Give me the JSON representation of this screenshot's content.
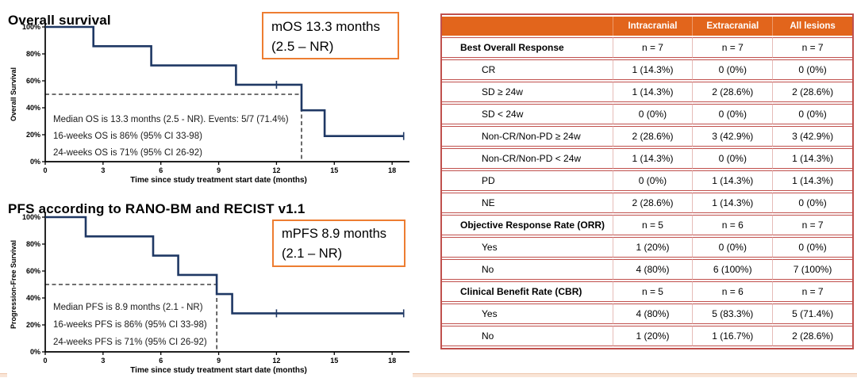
{
  "colors": {
    "km_line": "#1f3864",
    "callout_border": "#ed7d31",
    "table_header_bg": "#e2651c",
    "table_border": "#c0504d",
    "table_column_divider": "#e6bcb8",
    "footer_strip": "#f9e5d7",
    "axis": "#000000"
  },
  "chart_data": [
    {
      "type": "line",
      "subtype": "kaplan-meier-step",
      "title": "Overall survival",
      "ylabel": "Overall Survival",
      "xlabel": "Time since study treatment start date (months)",
      "xlim": [
        0,
        18.9
      ],
      "ylim": [
        0,
        100
      ],
      "xticks": [
        0,
        3,
        6,
        9,
        12,
        15,
        18
      ],
      "yticks": [
        0,
        20,
        40,
        60,
        80,
        100
      ],
      "ytick_suffix": "%",
      "grid": false,
      "legend": "none",
      "line_color": "#1f3864",
      "steps": [
        [
          0,
          100
        ],
        [
          2.5,
          100
        ],
        [
          2.5,
          85.7
        ],
        [
          5.5,
          85.7
        ],
        [
          5.5,
          71.4
        ],
        [
          9.9,
          71.4
        ],
        [
          9.9,
          57.1
        ],
        [
          13.3,
          57.1
        ],
        [
          13.3,
          38.1
        ],
        [
          14.5,
          38.1
        ],
        [
          14.5,
          19
        ],
        [
          18.6,
          19
        ]
      ],
      "censor_marks": [
        [
          12,
          57.1
        ],
        [
          18.6,
          19
        ]
      ],
      "median_dashed": {
        "x": 13.3,
        "y": 50
      },
      "annotations": [
        "Median OS is 13.3 months (2.5 - NR). Events: 5/7 (71.4%)",
        "16-weeks OS is 86% (95% CI 33-98)",
        "24-weeks OS is 71% (95% CI 26-92)"
      ],
      "callout": [
        "mOS 13.3 months",
        "(2.5 – NR)"
      ]
    },
    {
      "type": "line",
      "subtype": "kaplan-meier-step",
      "title": "PFS according to RANO-BM and RECIST v1.1",
      "ylabel": "Progression-Free Survival",
      "xlabel": "Time since study treatment start date (months)",
      "xlim": [
        0,
        18.9
      ],
      "ylim": [
        0,
        100
      ],
      "xticks": [
        0,
        3,
        6,
        9,
        12,
        15,
        18
      ],
      "yticks": [
        0,
        20,
        40,
        60,
        80,
        100
      ],
      "ytick_suffix": "%",
      "grid": false,
      "legend": "none",
      "line_color": "#1f3864",
      "steps": [
        [
          0,
          100
        ],
        [
          2.1,
          100
        ],
        [
          2.1,
          85.7
        ],
        [
          5.6,
          85.7
        ],
        [
          5.6,
          71.4
        ],
        [
          6.9,
          71.4
        ],
        [
          6.9,
          57.1
        ],
        [
          8.9,
          57.1
        ],
        [
          8.9,
          42.9
        ],
        [
          9.7,
          42.9
        ],
        [
          9.7,
          28.6
        ],
        [
          18.6,
          28.6
        ]
      ],
      "censor_marks": [
        [
          12,
          28.6
        ],
        [
          18.6,
          28.6
        ]
      ],
      "median_dashed": {
        "x": 8.9,
        "y": 50
      },
      "annotations": [
        "Median PFS is 8.9 months (2.1 - NR)",
        "16-weeks PFS is 86% (95% CI 33-98)",
        "24-weeks PFS is 71% (95% CI 26-92)"
      ],
      "callout": [
        "mPFS 8.9 months",
        "(2.1 – NR)"
      ]
    },
    {
      "type": "table",
      "title": "",
      "columns": [
        "",
        "Intracranial",
        "Extracranial",
        "All lesions"
      ],
      "rows": [
        {
          "label": "Best Overall Response",
          "bold": true,
          "values": [
            "n = 7",
            "n = 7",
            "n = 7"
          ]
        },
        {
          "label": "CR",
          "bold": false,
          "values": [
            "1 (14.3%)",
            "0 (0%)",
            "0 (0%)"
          ]
        },
        {
          "label": "SD ≥ 24w",
          "bold": false,
          "values": [
            "1 (14.3%)",
            "2 (28.6%)",
            "2 (28.6%)"
          ]
        },
        {
          "label": "SD < 24w",
          "bold": false,
          "values": [
            "0 (0%)",
            "0 (0%)",
            "0 (0%)"
          ]
        },
        {
          "label": "Non-CR/Non-PD ≥ 24w",
          "bold": false,
          "values": [
            "2 (28.6%)",
            "3 (42.9%)",
            "3 (42.9%)"
          ]
        },
        {
          "label": "Non-CR/Non-PD < 24w",
          "bold": false,
          "values": [
            "1 (14.3%)",
            "0 (0%)",
            "1 (14.3%)"
          ]
        },
        {
          "label": "PD",
          "bold": false,
          "values": [
            "0 (0%)",
            "1 (14.3%)",
            "1 (14.3%)"
          ]
        },
        {
          "label": "NE",
          "bold": false,
          "values": [
            "2 (28.6%)",
            "1 (14.3%)",
            "0 (0%)"
          ]
        },
        {
          "label": "Objective Response Rate (ORR)",
          "bold": true,
          "values": [
            "n = 5",
            "n = 6",
            "n = 7"
          ]
        },
        {
          "label": "Yes",
          "bold": false,
          "values": [
            "1 (20%)",
            "0 (0%)",
            "0 (0%)"
          ]
        },
        {
          "label": "No",
          "bold": false,
          "values": [
            "4 (80%)",
            "6 (100%)",
            "7 (100%)"
          ]
        },
        {
          "label": "Clinical Benefit Rate (CBR)",
          "bold": true,
          "values": [
            "n = 5",
            "n = 6",
            "n = 7"
          ]
        },
        {
          "label": "Yes",
          "bold": false,
          "values": [
            "4 (80%)",
            "5 (83.3%)",
            "5 (71.4%)"
          ]
        },
        {
          "label": "No",
          "bold": false,
          "values": [
            "1 (20%)",
            "1 (16.7%)",
            "2 (28.6%)"
          ]
        }
      ]
    }
  ]
}
